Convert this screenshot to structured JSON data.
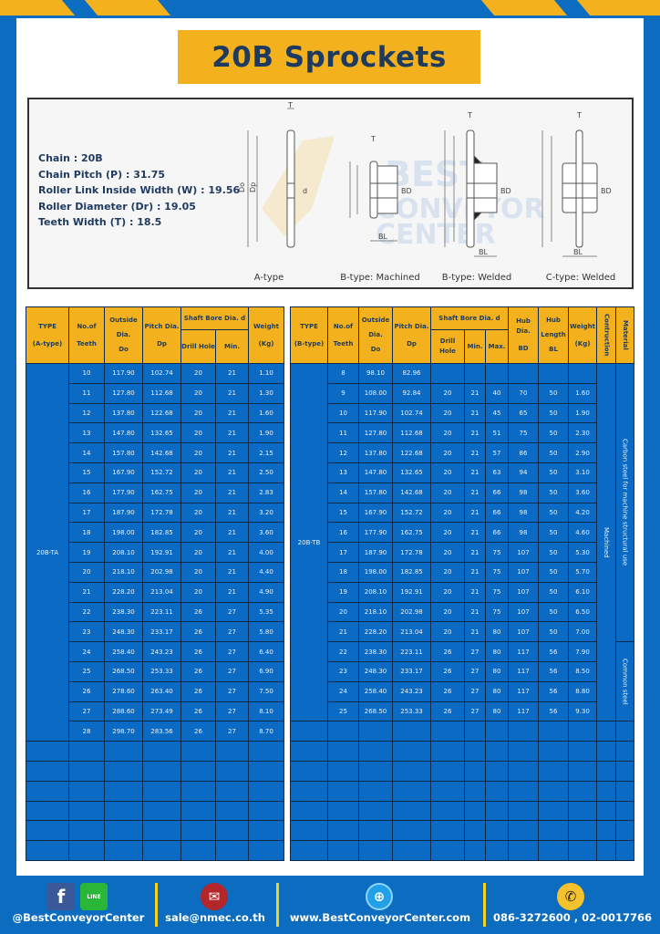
{
  "title": "20B Sprockets",
  "brand_watermark": "BEST CONVEYOR CENTER",
  "colors": {
    "background": "#0b6cc0",
    "accent_yellow": "#f3b21d",
    "title_text": "#1f3a5f",
    "cell_blue": "#0a6ac4"
  },
  "specs": [
    "Chain  : 20B",
    "Chain Pitch (P)  :  31.75",
    "Roller Link Inside Width (W)  :  19.56",
    "Roller Diameter (Dr)  : 19.05",
    "Teeth Width (T)  :  18.5"
  ],
  "diagram": {
    "types": [
      "A-type",
      "B-type: Machined",
      "B-type: Welded",
      "C-type: Welded"
    ],
    "dims": {
      "T": "T",
      "Do": "Do",
      "Dp": "Dp",
      "d": "d",
      "BD": "BD",
      "BL": "BL"
    }
  },
  "table_a": {
    "headers": {
      "type": "TYPE",
      "type_sub": "(A-type)",
      "teeth": "No.of",
      "teeth_sub": "Teeth",
      "do": "Outside",
      "do_sub": "Dia.",
      "do_sub2": "Do",
      "dp": "Pitch Dia.",
      "dp_sub": "Dp",
      "bore": "Shaft Bore Dia. d",
      "drill": "Drill Hole",
      "min": "Min.",
      "weight": "Weight",
      "weight_sub": "(Kg)"
    },
    "type_label": "20B-TA",
    "rows": [
      [
        "10",
        "117.90",
        "102.74",
        "20",
        "21",
        "1.10"
      ],
      [
        "11",
        "127.80",
        "112.68",
        "20",
        "21",
        "1.30"
      ],
      [
        "12",
        "137.80",
        "122.68",
        "20",
        "21",
        "1.60"
      ],
      [
        "13",
        "147.80",
        "132.65",
        "20",
        "21",
        "1.90"
      ],
      [
        "14",
        "157.80",
        "142.68",
        "20",
        "21",
        "2.15"
      ],
      [
        "15",
        "167.90",
        "152.72",
        "20",
        "21",
        "2.50"
      ],
      [
        "16",
        "177.90",
        "162.75",
        "20",
        "21",
        "2.83"
      ],
      [
        "17",
        "187.90",
        "172.78",
        "20",
        "21",
        "3.20"
      ],
      [
        "18",
        "198.00",
        "182.85",
        "20",
        "21",
        "3.60"
      ],
      [
        "19",
        "208.10",
        "192.91",
        "20",
        "21",
        "4.00"
      ],
      [
        "20",
        "218.10",
        "202.98",
        "20",
        "21",
        "4.40"
      ],
      [
        "21",
        "228.20",
        "213.04",
        "20",
        "21",
        "4.90"
      ],
      [
        "22",
        "238.30",
        "223.11",
        "26",
        "27",
        "5.35"
      ],
      [
        "23",
        "248.30",
        "233.17",
        "26",
        "27",
        "5.80"
      ],
      [
        "24",
        "258.40",
        "243.23",
        "26",
        "27",
        "6.40"
      ],
      [
        "25",
        "268.50",
        "253.33",
        "26",
        "27",
        "6.90"
      ],
      [
        "26",
        "278.60",
        "263.40",
        "26",
        "27",
        "7.50"
      ],
      [
        "27",
        "288.60",
        "273.49",
        "26",
        "27",
        "8.10"
      ],
      [
        "28",
        "298.70",
        "283.56",
        "26",
        "27",
        "8.70"
      ]
    ]
  },
  "table_b": {
    "headers": {
      "type": "TYPE",
      "type_sub": "(B-type)",
      "teeth": "No.of",
      "teeth_sub": "Teeth",
      "do": "Outside",
      "do_sub": "Dia.",
      "do_sub2": "Do",
      "dp": "Pitch Dia.",
      "dp_sub": "Dp",
      "bore": "Shaft Bore Dia. d",
      "drill": "Drill Hole",
      "min": "Min.",
      "max": "Max.",
      "bd": "Hub Dia.",
      "bd_sub": "BD",
      "bl": "Hub",
      "bl_sub": "Length",
      "bl_sub2": "BL",
      "weight": "Weight",
      "weight_sub": "(Kg)",
      "construction": "Contruction",
      "material": "Material"
    },
    "type_label": "20B-TB",
    "construction": "Machined",
    "material_1": "Carbon steel for machine structural use",
    "material_2": "Common steel",
    "rows": [
      [
        "8",
        "98.10",
        "82.96",
        "",
        "",
        "",
        "",
        "",
        "",
        ""
      ],
      [
        "9",
        "108.00",
        "92.84",
        "20",
        "21",
        "40",
        "70",
        "50",
        "1.60"
      ],
      [
        "10",
        "117.90",
        "102.74",
        "20",
        "21",
        "45",
        "65",
        "50",
        "1.90"
      ],
      [
        "11",
        "127.80",
        "112.68",
        "20",
        "21",
        "51",
        "75",
        "50",
        "2.30"
      ],
      [
        "12",
        "137.80",
        "122.68",
        "20",
        "21",
        "57",
        "86",
        "50",
        "2.90"
      ],
      [
        "13",
        "147.80",
        "132.65",
        "20",
        "21",
        "63",
        "94",
        "50",
        "3.10"
      ],
      [
        "14",
        "157.80",
        "142.68",
        "20",
        "21",
        "66",
        "98",
        "50",
        "3.60"
      ],
      [
        "15",
        "167.90",
        "152.72",
        "20",
        "21",
        "66",
        "98",
        "50",
        "4.20"
      ],
      [
        "16",
        "177.90",
        "162.75",
        "20",
        "21",
        "66",
        "98",
        "50",
        "4.60"
      ],
      [
        "17",
        "187.90",
        "172.78",
        "20",
        "21",
        "75",
        "107",
        "50",
        "5.30"
      ],
      [
        "18",
        "198.00",
        "182.85",
        "20",
        "21",
        "75",
        "107",
        "50",
        "5.70"
      ],
      [
        "19",
        "208.10",
        "192.91",
        "20",
        "21",
        "75",
        "107",
        "50",
        "6.10"
      ],
      [
        "20",
        "218.10",
        "202.98",
        "20",
        "21",
        "75",
        "107",
        "50",
        "6.50"
      ],
      [
        "21",
        "228.20",
        "213.04",
        "20",
        "21",
        "80",
        "107",
        "50",
        "7.00"
      ],
      [
        "22",
        "238.30",
        "223.11",
        "26",
        "27",
        "80",
        "117",
        "56",
        "7.90"
      ],
      [
        "23",
        "248.30",
        "233.17",
        "26",
        "27",
        "80",
        "117",
        "56",
        "8.50"
      ],
      [
        "24",
        "258.40",
        "243.23",
        "26",
        "27",
        "80",
        "117",
        "56",
        "8.80"
      ],
      [
        "25",
        "268.50",
        "253.33",
        "26",
        "27",
        "80",
        "117",
        "56",
        "9.30"
      ]
    ]
  },
  "footer": {
    "social": "@BestConveyorCenter",
    "line_icon_text": "LINE",
    "email": "sale@nmec.co.th",
    "website": "www.BestConveyorCenter.com",
    "phone": "086-3272600 , 02-0017766"
  }
}
